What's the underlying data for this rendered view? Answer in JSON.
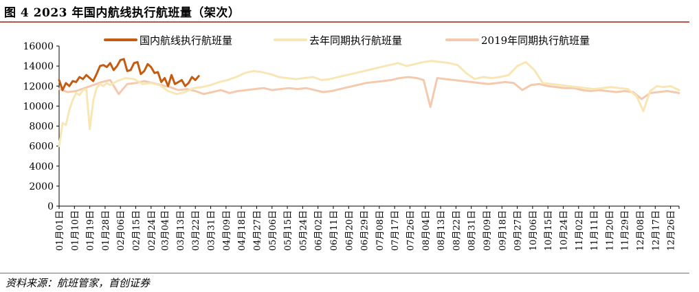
{
  "figure": {
    "title": "图 4 2023 年国内航线执行航班量（架次）",
    "source": "资料来源：航班管家，首创证券"
  },
  "colors": {
    "rule": "#c0504d",
    "series_2023": "#c55a11",
    "series_last_year": "#f8e6b4",
    "series_2019": "#f4c9ad"
  },
  "chart_data": {
    "type": "line",
    "title": "图 4 2023 年国内航线执行航班量（架次）",
    "ylim": [
      0,
      16000
    ],
    "yticks": [
      0,
      2000,
      4000,
      6000,
      8000,
      10000,
      12000,
      14000,
      16000
    ],
    "x_tick_labels": [
      "01月01日",
      "01月10日",
      "01月19日",
      "01月28日",
      "02月06日",
      "02月15日",
      "02月24日",
      "03月04日",
      "03月13日",
      "03月22日",
      "03月31日",
      "04月09日",
      "04月18日",
      "04月27日",
      "05月06日",
      "05月15日",
      "05月24日",
      "06月02日",
      "06月11日",
      "06月20日",
      "06月29日",
      "07月08日",
      "07月17日",
      "07月26日",
      "08月04日",
      "08月13日",
      "08月22日",
      "08月31日",
      "09月09日",
      "09月18日",
      "09月27日",
      "10月06日",
      "10月15日",
      "10月24日",
      "11月02日",
      "11月11日",
      "11月20日",
      "11月29日",
      "12月08日",
      "12月17日",
      "12月26日"
    ],
    "x_start": "01月01日",
    "x_end": "12月31日",
    "grid": false,
    "legend_position": "top",
    "series": [
      {
        "name": "国内航线执行航班量",
        "color": "#c55a11",
        "points": [
          [
            "01月01日",
            12600
          ],
          [
            "01月03日",
            11600
          ],
          [
            "01月05日",
            12300
          ],
          [
            "01月07日",
            12000
          ],
          [
            "01月09日",
            12500
          ],
          [
            "01月11日",
            12400
          ],
          [
            "01月13日",
            12900
          ],
          [
            "01月15日",
            12700
          ],
          [
            "01月17日",
            13100
          ],
          [
            "01月19日",
            12800
          ],
          [
            "01月21日",
            12500
          ],
          [
            "01月23日",
            13200
          ],
          [
            "01月25日",
            14000
          ],
          [
            "01月27日",
            14100
          ],
          [
            "01月29日",
            13900
          ],
          [
            "01月31日",
            14300
          ],
          [
            "02月02日",
            13600
          ],
          [
            "02月04日",
            14000
          ],
          [
            "02月06日",
            14600
          ],
          [
            "02月08日",
            14700
          ],
          [
            "02月10日",
            13500
          ],
          [
            "02月12日",
            13600
          ],
          [
            "02月14日",
            14300
          ],
          [
            "02月16日",
            14400
          ],
          [
            "02月18日",
            13200
          ],
          [
            "02月20日",
            13500
          ],
          [
            "02月22日",
            14200
          ],
          [
            "02月24日",
            13900
          ],
          [
            "02月26日",
            13300
          ],
          [
            "02月28日",
            13400
          ],
          [
            "03月02日",
            12400
          ],
          [
            "03月04日",
            12800
          ],
          [
            "03月06日",
            12000
          ],
          [
            "03月08日",
            13100
          ],
          [
            "03月10日",
            12200
          ],
          [
            "03月12日",
            12400
          ],
          [
            "03月14日",
            12600
          ],
          [
            "03月16日",
            12000
          ],
          [
            "03月18日",
            12300
          ],
          [
            "03月20日",
            12900
          ],
          [
            "03月22日",
            12600
          ],
          [
            "03月24日",
            13000
          ]
        ]
      },
      {
        "name": "去年同期执行航班量",
        "color": "#f8e6b4",
        "points": [
          [
            "01月01日",
            6000
          ],
          [
            "01月03日",
            8300
          ],
          [
            "01月05日",
            8100
          ],
          [
            "01月07日",
            9600
          ],
          [
            "01月09日",
            10600
          ],
          [
            "01月11日",
            11300
          ],
          [
            "01月13日",
            11100
          ],
          [
            "01月15日",
            11600
          ],
          [
            "01月17日",
            11700
          ],
          [
            "01月19日",
            7700
          ],
          [
            "01月21日",
            10500
          ],
          [
            "01月23日",
            11800
          ],
          [
            "01月25日",
            12200
          ],
          [
            "01月27日",
            12000
          ],
          [
            "01月29日",
            12300
          ],
          [
            "01月31日",
            12100
          ],
          [
            "02月04日",
            12500
          ],
          [
            "02月09日",
            12800
          ],
          [
            "02月14日",
            12700
          ],
          [
            "02月19日",
            12200
          ],
          [
            "02月24日",
            12300
          ],
          [
            "03月01日",
            12100
          ],
          [
            "03月06日",
            11500
          ],
          [
            "03月11日",
            11200
          ],
          [
            "03月16日",
            11400
          ],
          [
            "03月21日",
            11800
          ],
          [
            "03月26日",
            11900
          ],
          [
            "03月31日",
            12100
          ],
          [
            "04月05日",
            12400
          ],
          [
            "04月10日",
            12600
          ],
          [
            "04月15日",
            12900
          ],
          [
            "04月20日",
            13300
          ],
          [
            "04月25日",
            13500
          ],
          [
            "04月30日",
            13400
          ],
          [
            "05月05日",
            13200
          ],
          [
            "05月10日",
            12900
          ],
          [
            "05月15日",
            12800
          ],
          [
            "05月20日",
            12700
          ],
          [
            "05月25日",
            12800
          ],
          [
            "05月30日",
            12900
          ],
          [
            "06月04日",
            12600
          ],
          [
            "06月09日",
            12700
          ],
          [
            "06月14日",
            12900
          ],
          [
            "06月19日",
            13100
          ],
          [
            "06月24日",
            13300
          ],
          [
            "06月29日",
            13500
          ],
          [
            "07月04日",
            13700
          ],
          [
            "07月09日",
            13900
          ],
          [
            "07月14日",
            14100
          ],
          [
            "07月19日",
            14300
          ],
          [
            "07月24日",
            14000
          ],
          [
            "07月29日",
            14200
          ],
          [
            "08月03日",
            14400
          ],
          [
            "08月08日",
            14500
          ],
          [
            "08月13日",
            14400
          ],
          [
            "08月18日",
            14300
          ],
          [
            "08月23日",
            14100
          ],
          [
            "08月28日",
            13300
          ],
          [
            "09月02日",
            12700
          ],
          [
            "09月07日",
            12900
          ],
          [
            "09月12日",
            12800
          ],
          [
            "09月17日",
            12900
          ],
          [
            "09月22日",
            13100
          ],
          [
            "09月27日",
            14000
          ],
          [
            "10月02日",
            14400
          ],
          [
            "10月07日",
            13600
          ],
          [
            "10月12日",
            12300
          ],
          [
            "10月17日",
            12200
          ],
          [
            "10月22日",
            12100
          ],
          [
            "10月27日",
            12000
          ],
          [
            "11月01日",
            11900
          ],
          [
            "11月06日",
            11800
          ],
          [
            "11月11日",
            11700
          ],
          [
            "11月16日",
            11800
          ],
          [
            "11月21日",
            11900
          ],
          [
            "11月26日",
            11800
          ],
          [
            "12月01日",
            11700
          ],
          [
            "12月06日",
            11000
          ],
          [
            "12月10日",
            9500
          ],
          [
            "12月14日",
            11500
          ],
          [
            "12月18日",
            12000
          ],
          [
            "12月22日",
            11900
          ],
          [
            "12月26日",
            12000
          ],
          [
            "12月31日",
            11600
          ]
        ]
      },
      {
        "name": "2019年同期执行航班量",
        "color": "#f4c9ad",
        "points": [
          [
            "01月01日",
            11700
          ],
          [
            "01月06日",
            11400
          ],
          [
            "01月11日",
            11500
          ],
          [
            "01月16日",
            11800
          ],
          [
            "01月21日",
            12100
          ],
          [
            "01月26日",
            12400
          ],
          [
            "01月31日",
            12600
          ],
          [
            "02月05日",
            11200
          ],
          [
            "02月10日",
            12200
          ],
          [
            "02月15日",
            12300
          ],
          [
            "02月20日",
            12500
          ],
          [
            "02月25日",
            12300
          ],
          [
            "03月02日",
            12100
          ],
          [
            "03月07日",
            11900
          ],
          [
            "03月12日",
            11600
          ],
          [
            "03月17日",
            11700
          ],
          [
            "03月22日",
            11500
          ],
          [
            "03月27日",
            11200
          ],
          [
            "04月01日",
            11400
          ],
          [
            "04月06日",
            11600
          ],
          [
            "04月11日",
            11300
          ],
          [
            "04月16日",
            11500
          ],
          [
            "04月21日",
            11600
          ],
          [
            "04月26日",
            11700
          ],
          [
            "05月01日",
            11800
          ],
          [
            "05月06日",
            11600
          ],
          [
            "05月11日",
            11700
          ],
          [
            "05月16日",
            11800
          ],
          [
            "05月21日",
            11700
          ],
          [
            "05月26日",
            11800
          ],
          [
            "05月31日",
            11600
          ],
          [
            "06月05日",
            11400
          ],
          [
            "06月10日",
            11500
          ],
          [
            "06月15日",
            11700
          ],
          [
            "06月20日",
            11900
          ],
          [
            "06月25日",
            12100
          ],
          [
            "06月30日",
            12300
          ],
          [
            "07月05日",
            12400
          ],
          [
            "07月10日",
            12500
          ],
          [
            "07月15日",
            12600
          ],
          [
            "07月20日",
            12800
          ],
          [
            "07月25日",
            12900
          ],
          [
            "07月30日",
            12800
          ],
          [
            "08月03日",
            12600
          ],
          [
            "08月07日",
            9900
          ],
          [
            "08月11日",
            12800
          ],
          [
            "08月16日",
            12700
          ],
          [
            "08月21日",
            12600
          ],
          [
            "08月26日",
            12500
          ],
          [
            "08月31日",
            12400
          ],
          [
            "09月05日",
            12300
          ],
          [
            "09月10日",
            12200
          ],
          [
            "09月15日",
            12300
          ],
          [
            "09月20日",
            12400
          ],
          [
            "09月25日",
            12300
          ],
          [
            "09月30日",
            11600
          ],
          [
            "10月05日",
            12100
          ],
          [
            "10月10日",
            12200
          ],
          [
            "10月15日",
            12000
          ],
          [
            "10月20日",
            11900
          ],
          [
            "10月25日",
            11800
          ],
          [
            "10月30日",
            11800
          ],
          [
            "11月04日",
            11600
          ],
          [
            "11月09日",
            11500
          ],
          [
            "11月14日",
            11600
          ],
          [
            "11月19日",
            11500
          ],
          [
            "11月24日",
            11400
          ],
          [
            "11月29日",
            11500
          ],
          [
            "12月04日",
            11400
          ],
          [
            "12月09日",
            10700
          ],
          [
            "12月14日",
            11300
          ],
          [
            "12月19日",
            11400
          ],
          [
            "12月24日",
            11500
          ],
          [
            "12月31日",
            11300
          ]
        ]
      }
    ]
  }
}
